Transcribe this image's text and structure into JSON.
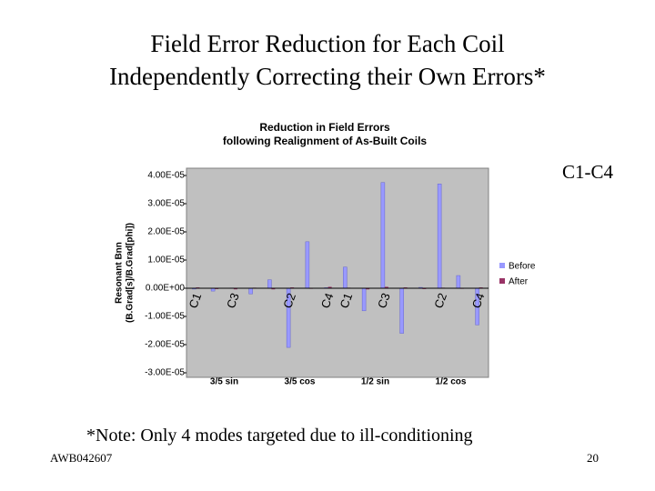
{
  "slide_title": [
    "Field Error Reduction for Each Coil",
    "Independently Correcting their Own Errors*"
  ],
  "side_label": "C1-C4",
  "note": "*Note: Only 4 modes targeted due to ill-conditioning",
  "footer": "AWB042607",
  "page_number": "20",
  "chart_data": {
    "type": "bar",
    "title": [
      "Reduction in Field Errors",
      "following Realignment of As-Built Coils"
    ],
    "ylabel": [
      "Resonant Bnn",
      "(B.Grad[s]/B.Grad[phi])"
    ],
    "categories": [
      "C1",
      null,
      "C3",
      null,
      null,
      "C2",
      null,
      "C4",
      "C1",
      null,
      "C3",
      null,
      null,
      "C2",
      null,
      "C4"
    ],
    "groups": [
      "3/5 sin",
      "3/5 cos",
      "1/2 sin",
      "1/2 cos"
    ],
    "ylim": [
      -3e-05,
      4e-05
    ],
    "yticks": [
      {
        "value": 4e-05,
        "label": "4.00E-05"
      },
      {
        "value": 3e-05,
        "label": "3.00E-05"
      },
      {
        "value": 2e-05,
        "label": "2.00E-05"
      },
      {
        "value": 1e-05,
        "label": "1.00E-05"
      },
      {
        "value": 0,
        "label": "0.00E+00"
      },
      {
        "value": -1e-05,
        "label": "-1.00E-05"
      },
      {
        "value": -2e-05,
        "label": "-2.00E-05"
      },
      {
        "value": -3e-05,
        "label": "-3.00E-05"
      }
    ],
    "series": [
      {
        "name": "Before",
        "color": "#9999ff",
        "values": [
          -3e-07,
          -1e-06,
          1e-07,
          -2e-06,
          3e-06,
          -2.1e-05,
          1.65e-05,
          2e-07,
          7.5e-06,
          -8e-06,
          3.75e-05,
          -1.6e-05,
          3e-07,
          3.7e-05,
          4.5e-06,
          -1.3e-05
        ]
      },
      {
        "name": "After",
        "color": "#993366",
        "values": [
          3e-07,
          -3e-07,
          -4e-07,
          2e-07,
          -4e-07,
          3e-07,
          -2e-07,
          5e-07,
          2e-07,
          -4e-07,
          5e-07,
          3e-07,
          -3e-07,
          2e-07,
          -2e-07,
          3e-07
        ]
      }
    ]
  }
}
